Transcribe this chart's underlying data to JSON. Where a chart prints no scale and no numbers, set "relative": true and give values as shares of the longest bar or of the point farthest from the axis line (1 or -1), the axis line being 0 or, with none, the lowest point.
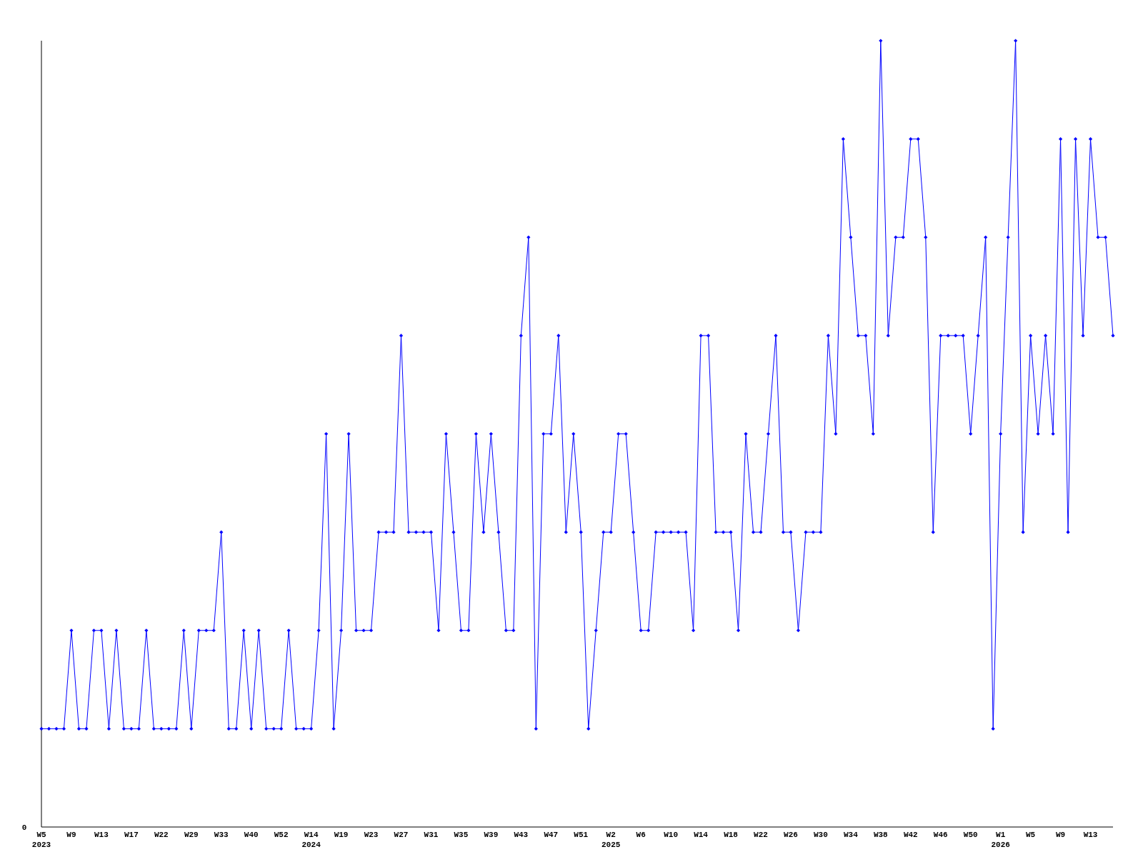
{
  "chart_data": {
    "type": "line",
    "relative": true,
    "color": "#0000ff",
    "marker": "diamond",
    "annotations": [
      "0"
    ],
    "categories": [
      "W5\n2023",
      null,
      null,
      null,
      "W9",
      null,
      null,
      null,
      "W13",
      null,
      null,
      null,
      "W17",
      null,
      null,
      null,
      "W22",
      null,
      null,
      null,
      "W29",
      null,
      null,
      null,
      "W33",
      null,
      null,
      null,
      "W40",
      null,
      null,
      null,
      "W52",
      null,
      null,
      null,
      "W14\n2024",
      null,
      null,
      null,
      "W19",
      null,
      null,
      null,
      "W23",
      null,
      null,
      null,
      "W27",
      null,
      null,
      null,
      "W31",
      null,
      null,
      null,
      "W35",
      null,
      null,
      null,
      "W39",
      null,
      null,
      null,
      "W43",
      null,
      null,
      null,
      "W47",
      null,
      null,
      null,
      "W51",
      null,
      null,
      null,
      "W2\n2025",
      null,
      null,
      null,
      "W6",
      null,
      null,
      null,
      "W10",
      null,
      null,
      null,
      "W14",
      null,
      null,
      null,
      "W18",
      null,
      null,
      null,
      "W22",
      null,
      null,
      null,
      "W26",
      null,
      null,
      null,
      "W30",
      null,
      null,
      null,
      "W34",
      null,
      null,
      null,
      "W38",
      null,
      null,
      null,
      "W42",
      null,
      null,
      null,
      "W46",
      null,
      null,
      null,
      "W50",
      null,
      null,
      null,
      "W1\n2026",
      null,
      null,
      null,
      "W5",
      null,
      null,
      null,
      "W9",
      null,
      null,
      null,
      "W13",
      null,
      null,
      null
    ],
    "values": [
      0.125,
      0.125,
      0.125,
      0.125,
      0.25,
      0.125,
      0.125,
      0.25,
      0.25,
      0.125,
      0.25,
      0.125,
      0.125,
      0.125,
      0.25,
      0.125,
      0.125,
      0.125,
      0.125,
      0.25,
      0.125,
      0.25,
      0.25,
      0.25,
      0.375,
      0.125,
      0.125,
      0.25,
      0.125,
      0.25,
      0.125,
      0.125,
      0.125,
      0.25,
      0.125,
      0.125,
      0.125,
      0.25,
      0.5,
      0.125,
      0.25,
      0.5,
      0.25,
      0.25,
      0.25,
      0.375,
      0.375,
      0.375,
      0.625,
      0.375,
      0.375,
      0.375,
      0.375,
      0.25,
      0.5,
      0.375,
      0.25,
      0.25,
      0.5,
      0.375,
      0.5,
      0.375,
      0.25,
      0.25,
      0.625,
      0.75,
      0.125,
      0.5,
      0.5,
      0.625,
      0.375,
      0.5,
      0.375,
      0.125,
      0.25,
      0.375,
      0.375,
      0.5,
      0.5,
      0.375,
      0.25,
      0.25,
      0.375,
      0.375,
      0.375,
      0.375,
      0.375,
      0.25,
      0.625,
      0.625,
      0.375,
      0.375,
      0.375,
      0.25,
      0.5,
      0.375,
      0.375,
      0.5,
      0.625,
      0.375,
      0.375,
      0.25,
      0.375,
      0.375,
      0.375,
      0.625,
      0.5,
      0.875,
      0.75,
      0.625,
      0.625,
      0.5,
      1,
      0.625,
      0.75,
      0.75,
      0.875,
      0.875,
      0.75,
      0.375,
      0.625,
      0.625,
      0.625,
      0.625,
      0.5,
      0.625,
      0.75,
      0.125,
      0.5,
      0.75,
      1,
      0.375,
      0.625,
      0.5,
      0.625,
      0.5,
      0.875,
      0.375,
      0.875,
      0.625,
      0.875,
      0.75,
      0.75,
      0.625
    ]
  }
}
